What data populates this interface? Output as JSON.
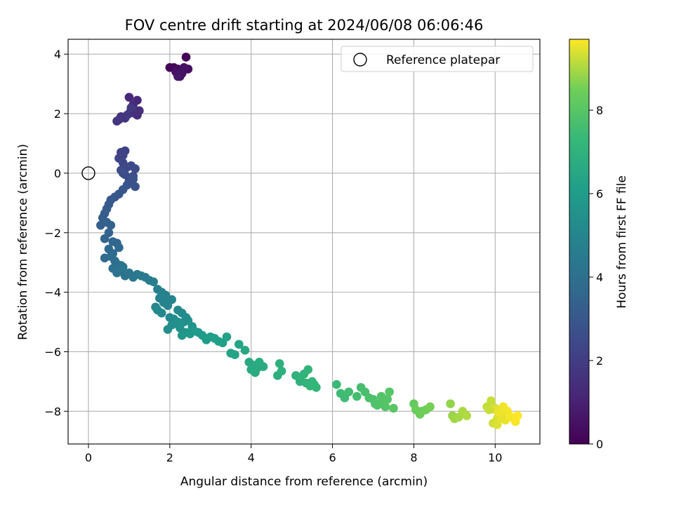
{
  "chart_data": {
    "type": "scatter",
    "title": "FOV centre drift starting at 2024/06/08 06:06:46",
    "xlabel": "Angular distance from reference (arcmin)",
    "ylabel": "Rotation from reference (arcmin)",
    "xlim": [
      -0.5,
      11.1
    ],
    "ylim": [
      -9.1,
      4.5
    ],
    "xticks": [
      0,
      2,
      4,
      6,
      8,
      10
    ],
    "yticks": [
      -8,
      -6,
      -4,
      -2,
      0,
      2,
      4
    ],
    "grid": true,
    "legend": {
      "position": "top-right",
      "entries": [
        "Reference platepar"
      ]
    },
    "reference": {
      "name": "Reference platepar",
      "x": 0,
      "y": 0
    },
    "colorbar": {
      "label": "Hours from first FF file",
      "colormap": "viridis",
      "range": [
        0,
        9.7
      ],
      "ticks": [
        0,
        2,
        4,
        6,
        8
      ]
    },
    "series": [
      {
        "x": [
          2.4,
          2.0,
          2.1,
          2.2,
          2.3,
          2.4,
          2.45,
          2.25,
          2.15,
          2.35,
          2.3,
          2.2,
          1.0,
          1.2,
          1.1,
          1.05,
          1.15,
          1.2,
          1.25,
          1.0,
          0.9,
          0.8,
          0.7,
          0.75,
          0.95,
          1.05,
          0.8,
          0.9,
          0.85,
          0.75,
          0.85,
          0.95,
          1.05,
          1.15,
          1.1,
          0.9,
          0.8,
          0.85,
          1.0,
          1.1,
          1.15,
          0.95,
          0.85,
          0.75,
          0.65,
          0.55,
          0.5,
          0.45,
          0.4,
          0.35,
          0.3,
          0.45,
          0.55,
          0.5,
          0.4,
          0.6,
          0.7,
          0.75,
          0.5,
          0.6,
          0.4,
          0.55,
          0.65,
          0.7,
          0.8,
          0.6,
          0.7,
          0.8,
          0.9,
          0.85,
          1.0,
          1.1,
          1.2,
          1.3,
          1.4,
          1.5,
          1.6,
          1.7,
          1.8,
          1.9,
          1.75,
          1.85,
          1.95,
          2.05,
          1.65,
          1.7,
          1.8,
          2.0,
          2.1,
          2.2,
          1.95,
          2.05,
          2.15,
          2.25,
          2.35,
          2.45,
          2.55,
          2.3,
          2.4,
          2.5,
          2.6,
          2.7,
          2.8,
          2.2,
          2.3,
          2.4,
          1.95,
          2.9,
          3.0,
          3.1,
          3.2,
          3.3,
          3.4,
          3.5,
          3.6,
          3.7,
          3.85,
          3.95,
          4.05,
          4.15,
          4.0,
          4.1,
          4.2,
          4.3,
          4.65,
          4.7,
          4.75,
          5.1,
          5.2,
          5.3,
          5.4,
          5.5,
          5.6,
          5.2,
          5.35,
          5.45,
          5.55,
          6.1,
          6.2,
          6.3,
          6.4,
          6.6,
          6.7,
          6.8,
          6.9,
          7.0,
          7.1,
          7.2,
          7.3,
          7.4,
          7.5,
          7.05,
          7.2,
          7.35,
          8.0,
          8.05,
          8.15,
          8.2,
          8.3,
          8.4,
          8.9,
          8.95,
          9.0,
          9.1,
          9.2,
          9.3,
          9.8,
          9.9,
          10.0,
          10.05,
          10.1,
          10.15,
          10.2,
          10.25,
          10.3,
          10.35,
          10.4,
          10.5,
          10.55,
          9.95,
          10.05,
          10.15,
          10.0,
          10.1,
          10.2,
          9.85
        ],
        "y": [
          3.9,
          3.55,
          3.55,
          3.5,
          3.45,
          3.5,
          3.5,
          3.25,
          3.4,
          3.55,
          3.35,
          3.25,
          2.55,
          2.45,
          2.3,
          2.15,
          2.0,
          1.95,
          2.1,
          2.0,
          1.85,
          1.9,
          1.75,
          1.8,
          1.95,
          2.2,
          0.7,
          0.75,
          0.6,
          0.5,
          0.35,
          0.2,
          0.25,
          0.15,
          -0.1,
          -0.05,
          0.1,
          0.0,
          -0.25,
          -0.2,
          -0.45,
          -0.4,
          -0.55,
          -0.7,
          -0.8,
          -0.9,
          -1.05,
          -1.2,
          -1.35,
          -1.5,
          -1.75,
          -1.65,
          -1.75,
          -2.0,
          -2.2,
          -2.3,
          -2.35,
          -2.5,
          -2.55,
          -2.7,
          -2.85,
          -2.8,
          -2.95,
          -3.05,
          -3.1,
          -3.2,
          -3.35,
          -3.3,
          -3.45,
          -3.15,
          -3.35,
          -3.5,
          -3.4,
          -3.45,
          -3.5,
          -3.6,
          -3.65,
          -3.9,
          -4.0,
          -4.1,
          -4.2,
          -4.35,
          -4.45,
          -4.25,
          -4.5,
          -4.6,
          -4.7,
          -4.85,
          -4.9,
          -5.0,
          -5.25,
          -5.1,
          -5.05,
          -5.2,
          -5.0,
          -4.95,
          -5.15,
          -5.45,
          -5.35,
          -5.4,
          -5.3,
          -5.35,
          -5.45,
          -4.6,
          -4.7,
          -4.85,
          -4.3,
          -5.6,
          -5.5,
          -5.55,
          -5.65,
          -5.7,
          -5.5,
          -6.05,
          -6.1,
          -5.75,
          -5.95,
          -6.35,
          -6.45,
          -6.55,
          -6.6,
          -6.7,
          -6.35,
          -6.5,
          -6.8,
          -6.4,
          -6.65,
          -6.8,
          -6.9,
          -6.75,
          -6.6,
          -7.0,
          -7.2,
          -7.0,
          -7.05,
          -7.15,
          -7.1,
          -7.1,
          -7.4,
          -7.55,
          -7.35,
          -7.5,
          -7.2,
          -7.35,
          -7.55,
          -7.6,
          -7.8,
          -7.7,
          -7.85,
          -7.35,
          -7.9,
          -7.75,
          -7.5,
          -7.6,
          -7.75,
          -7.95,
          -8.1,
          -8.0,
          -7.95,
          -7.85,
          -7.75,
          -8.15,
          -8.25,
          -8.2,
          -8.0,
          -8.15,
          -7.85,
          -7.65,
          -7.9,
          -8.25,
          -8.05,
          -7.95,
          -8.1,
          -8.3,
          -8.0,
          -8.15,
          -8.2,
          -8.35,
          -8.15,
          -8.4,
          -8.45,
          -8.25,
          -7.95,
          -8.05,
          -7.85,
          -7.95
        ],
        "hours": [
          0.1,
          0.15,
          0.2,
          0.25,
          0.3,
          0.35,
          0.4,
          0.45,
          0.5,
          0.55,
          0.6,
          0.65,
          1.2,
          1.25,
          1.3,
          1.35,
          1.4,
          1.45,
          1.5,
          1.55,
          1.6,
          1.65,
          1.7,
          1.75,
          1.8,
          1.85,
          2.1,
          2.15,
          2.2,
          2.25,
          2.3,
          2.35,
          2.4,
          2.45,
          2.5,
          2.55,
          2.6,
          2.65,
          2.7,
          2.75,
          2.8,
          2.85,
          2.9,
          2.95,
          3.0,
          3.05,
          3.1,
          3.15,
          3.2,
          3.25,
          3.3,
          3.35,
          3.4,
          3.45,
          3.5,
          3.55,
          3.6,
          3.65,
          3.7,
          3.75,
          3.8,
          3.85,
          3.9,
          3.95,
          4.0,
          4.05,
          4.1,
          4.15,
          4.2,
          4.25,
          4.3,
          4.35,
          4.4,
          4.45,
          4.5,
          4.55,
          4.6,
          4.7,
          4.75,
          4.8,
          4.85,
          4.9,
          4.95,
          5.0,
          5.05,
          5.1,
          5.15,
          5.2,
          5.25,
          5.3,
          5.35,
          5.4,
          5.45,
          5.5,
          5.55,
          5.6,
          5.65,
          5.7,
          5.75,
          5.8,
          5.85,
          5.9,
          5.95,
          5.2,
          5.25,
          5.3,
          4.9,
          6.0,
          6.05,
          6.1,
          6.15,
          6.2,
          6.25,
          6.3,
          6.35,
          6.4,
          6.5,
          6.55,
          6.6,
          6.65,
          6.6,
          6.65,
          6.7,
          6.75,
          6.85,
          6.9,
          6.95,
          7.0,
          7.05,
          7.1,
          7.15,
          7.2,
          7.25,
          7.05,
          7.1,
          7.15,
          7.2,
          7.4,
          7.45,
          7.5,
          7.55,
          7.6,
          7.65,
          7.7,
          7.75,
          7.8,
          7.85,
          7.9,
          7.95,
          8.0,
          8.05,
          7.85,
          7.9,
          7.95,
          8.3,
          8.35,
          8.4,
          8.45,
          8.5,
          8.55,
          8.8,
          8.85,
          8.9,
          8.95,
          9.0,
          9.05,
          9.2,
          9.25,
          9.3,
          9.35,
          9.4,
          9.45,
          9.5,
          9.55,
          9.6,
          9.62,
          9.64,
          9.66,
          9.68,
          9.3,
          9.4,
          9.5,
          9.45,
          9.55,
          9.6,
          9.25
        ]
      }
    ]
  },
  "colors": {
    "grid": "#b0b0b0",
    "axes": "#000000",
    "background": "#ffffff"
  }
}
